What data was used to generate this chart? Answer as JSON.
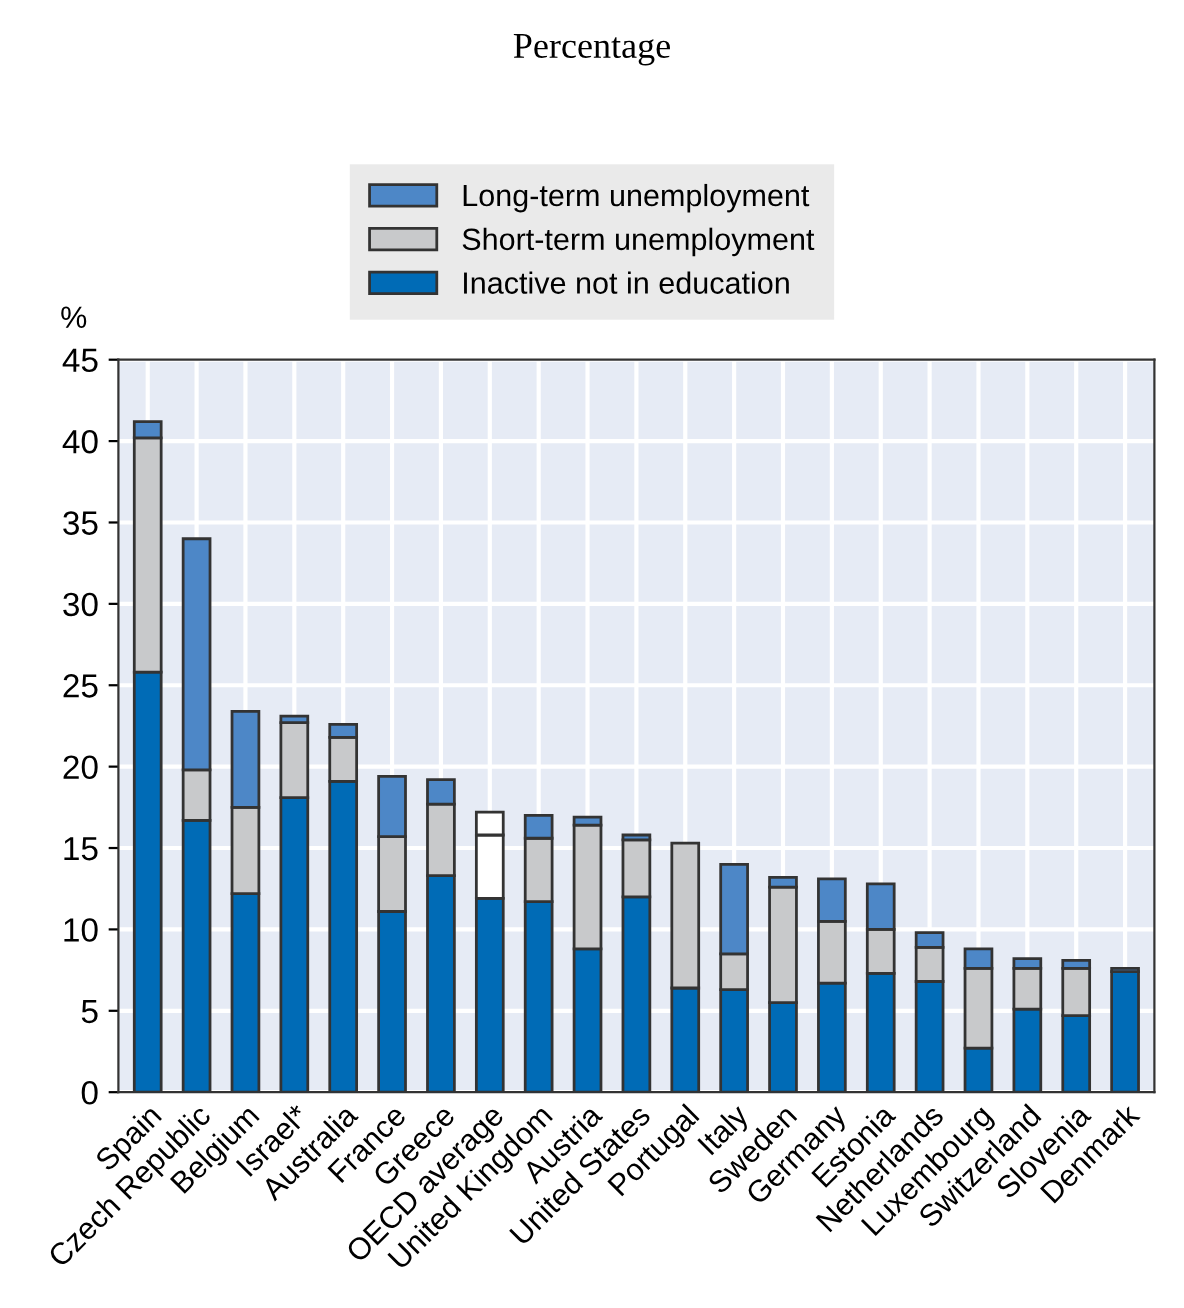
{
  "chart_data": {
    "type": "bar",
    "subtitle": "Percentage",
    "ylabel": "%",
    "stacked": true,
    "grid": true,
    "legend": "top",
    "categories": [
      "Spain",
      "Czech Republic",
      "Belgium",
      "Israel*",
      "Australia",
      "France",
      "Greece",
      "OECD average",
      "United Kingdom",
      "Austria",
      "United States",
      "Portugal",
      "Italy",
      "Sweden",
      "Germany",
      "Estonia",
      "Netherlands",
      "Luxembourg",
      "Switzerland",
      "Slovenia",
      "Denmark"
    ],
    "ylim": [
      0,
      45
    ],
    "yticks": [
      0,
      5,
      10,
      15,
      20,
      25,
      30,
      35,
      40,
      45
    ],
    "series": [
      {
        "name": "Inactive not in education",
        "color": "#006bb6",
        "values": [
          25.8,
          16.7,
          12.2,
          18.1,
          19.1,
          11.1,
          13.3,
          11.9,
          11.7,
          8.8,
          12.0,
          6.4,
          6.3,
          5.5,
          6.7,
          7.3,
          6.8,
          2.7,
          5.1,
          4.7,
          7.4
        ]
      },
      {
        "name": "Short-term unemployment",
        "color": "#c8c9cb",
        "colors": [
          "#c8c9cb",
          "#c8c9cb",
          "#c8c9cb",
          "#c8c9cb",
          "#c8c9cb",
          "#c8c9cb",
          "#c8c9cb",
          "#ffffff",
          "#c8c9cb",
          "#c8c9cb",
          "#c8c9cb",
          "#c8c9cb",
          "#c8c9cb",
          "#c8c9cb",
          "#c8c9cb",
          "#c8c9cb",
          "#c8c9cb",
          "#c8c9cb",
          "#c8c9cb",
          "#c8c9cb",
          "#c8c9cb"
        ],
        "values": [
          14.4,
          3.1,
          5.3,
          4.6,
          2.7,
          4.6,
          4.4,
          3.9,
          3.9,
          7.6,
          3.5,
          8.9,
          2.2,
          7.1,
          3.8,
          2.7,
          2.1,
          4.9,
          2.5,
          2.9,
          null
        ]
      },
      {
        "name": "Long-term unemployment",
        "color": "#4d87c7",
        "colors": [
          "#4d87c7",
          "#4d87c7",
          "#4d87c7",
          "#4d87c7",
          "#4d87c7",
          "#4d87c7",
          "#4d87c7",
          "#ffffff",
          "#4d87c7",
          "#4d87c7",
          "#4d87c7",
          "#4d87c7",
          "#4d87c7",
          "#4d87c7",
          "#4d87c7",
          "#4d87c7",
          "#4d87c7",
          "#4d87c7",
          "#4d87c7",
          "#4d87c7",
          "#4d87c7"
        ],
        "values": [
          1.0,
          14.2,
          5.9,
          0.4,
          0.8,
          3.7,
          1.5,
          1.4,
          1.4,
          0.5,
          0.3,
          null,
          5.5,
          0.6,
          2.6,
          2.8,
          0.9,
          1.2,
          0.6,
          0.5,
          0.2
        ]
      }
    ]
  }
}
